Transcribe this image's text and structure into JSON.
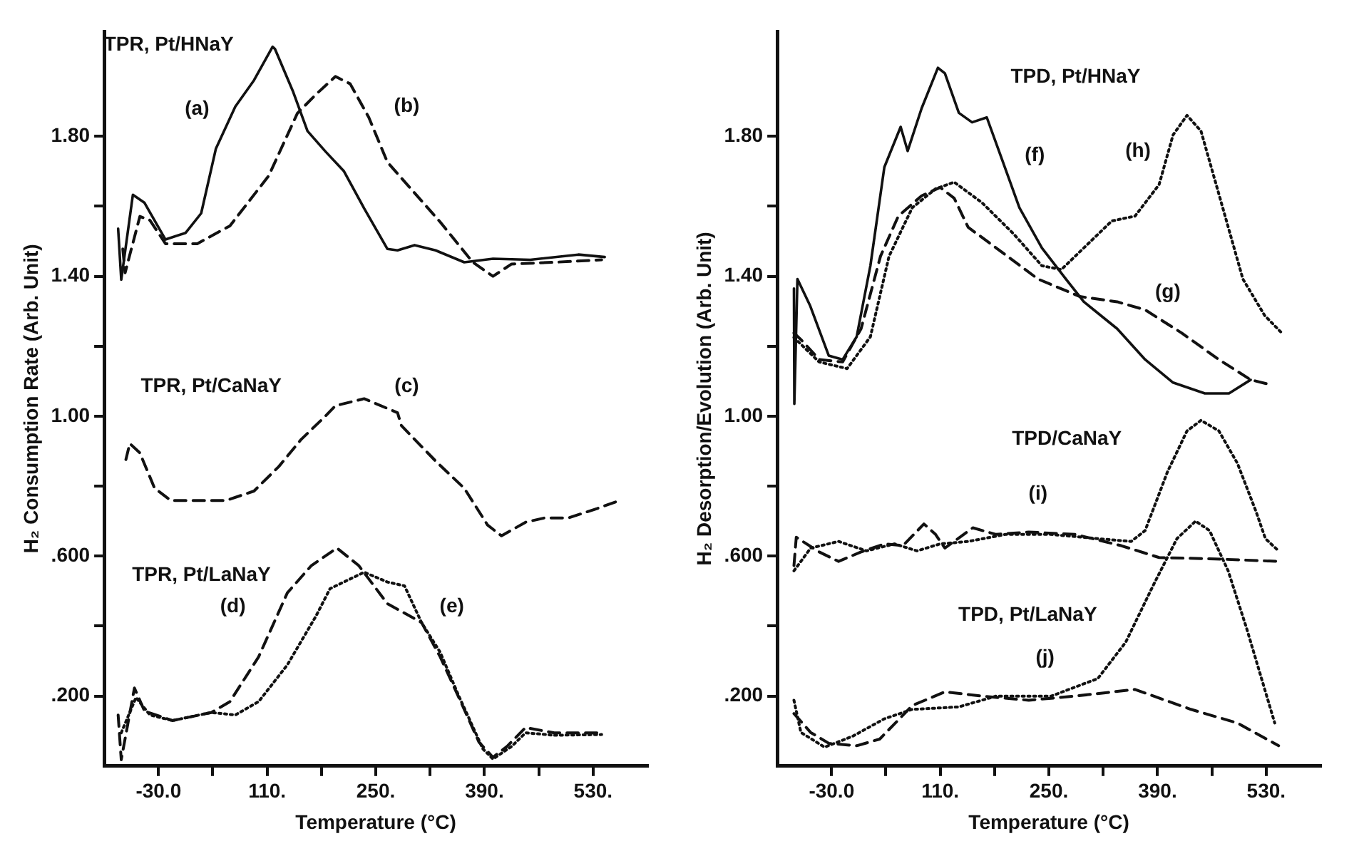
{
  "chart_data": [
    {
      "type": "line",
      "xlabel": "Temperature (°C)",
      "ylabel": "H₂ Consumption Rate (Arb. Unit)",
      "xlim": [
        -100,
        600
      ],
      "ylim": [
        0,
        2.1
      ],
      "xticks": [
        {
          "value": -30,
          "label": "-30.0"
        },
        {
          "value": 40,
          "label": null
        },
        {
          "value": 110,
          "label": "110."
        },
        {
          "value": 180,
          "label": null
        },
        {
          "value": 250,
          "label": "250."
        },
        {
          "value": 320,
          "label": null
        },
        {
          "value": 390,
          "label": "390."
        },
        {
          "value": 460,
          "label": null
        },
        {
          "value": 530,
          "label": "530."
        }
      ],
      "yticks": [
        {
          "value": 0.2,
          "label": ".200"
        },
        {
          "value": 0.4,
          "label": null
        },
        {
          "value": 0.6,
          "label": ".600"
        },
        {
          "value": 0.8,
          "label": null
        },
        {
          "value": 1.0,
          "label": "1.00"
        },
        {
          "value": 1.2,
          "label": null
        },
        {
          "value": 1.4,
          "label": "1.40"
        },
        {
          "value": 1.6,
          "label": null
        },
        {
          "value": 1.8,
          "label": "1.80"
        }
      ],
      "grid": false,
      "legend": false,
      "marker": "none",
      "series": [
        {
          "color": "#111111",
          "line_style": "solid",
          "x": [
            -82,
            -78,
            -63,
            -48,
            -21,
            5,
            25,
            44,
            69,
            93,
            117,
            120,
            143,
            162,
            185,
            209,
            235,
            265,
            278,
            300,
            327,
            364,
            401,
            449,
            511,
            545
          ],
          "values": [
            1.536,
            1.39,
            1.633,
            1.61,
            1.505,
            1.524,
            1.58,
            1.765,
            1.885,
            1.96,
            2.056,
            2.05,
            1.93,
            1.815,
            1.757,
            1.7,
            1.594,
            1.478,
            1.474,
            1.489,
            1.474,
            1.44,
            1.45,
            1.447,
            1.462,
            1.455
          ]
        },
        {
          "color": "#111111",
          "line_style": "dashed",
          "x": [
            -76,
            -73,
            -54,
            -41,
            -21,
            20,
            62,
            112,
            149,
            173,
            198,
            217,
            241,
            265,
            296,
            333,
            375,
            401,
            425,
            480,
            541
          ],
          "values": [
            1.478,
            1.41,
            1.571,
            1.56,
            1.493,
            1.493,
            1.544,
            1.687,
            1.866,
            1.92,
            1.971,
            1.95,
            1.854,
            1.726,
            1.648,
            1.555,
            1.44,
            1.4,
            1.435,
            1.44,
            1.447
          ]
        },
        {
          "color": "#111111",
          "line_style": "dashed",
          "x": [
            -72,
            -67,
            -54,
            -35,
            -14,
            20,
            57,
            93,
            125,
            154,
            185,
            198,
            235,
            278,
            283,
            327,
            364,
            394,
            412,
            443,
            467,
            498,
            535,
            559
          ],
          "values": [
            0.876,
            0.922,
            0.895,
            0.794,
            0.759,
            0.759,
            0.759,
            0.786,
            0.856,
            0.934,
            1.0,
            1.03,
            1.05,
            1.01,
            0.973,
            0.872,
            0.794,
            0.689,
            0.658,
            0.697,
            0.709,
            0.709,
            0.736,
            0.755
          ]
        },
        {
          "color": "#111111",
          "line_style": "dashed",
          "x": [
            -82,
            -78,
            -61,
            -48,
            -12,
            38,
            62,
            99,
            136,
            167,
            200,
            228,
            265,
            309,
            333,
            357,
            383,
            401,
            419,
            443,
            480,
            541
          ],
          "values": [
            0.146,
            0.018,
            0.223,
            0.157,
            0.13,
            0.153,
            0.184,
            0.312,
            0.495,
            0.573,
            0.623,
            0.573,
            0.464,
            0.41,
            0.312,
            0.196,
            0.068,
            0.025,
            0.056,
            0.11,
            0.095,
            0.095
          ]
        },
        {
          "color": "#111111",
          "line_style": "dotted",
          "x": [
            -78,
            -59,
            -41,
            -12,
            38,
            69,
            99,
            136,
            173,
            191,
            235,
            265,
            287,
            309,
            333,
            357,
            388,
            401,
            425,
            443,
            480,
            541
          ],
          "values": [
            0.095,
            0.196,
            0.146,
            0.13,
            0.153,
            0.146,
            0.184,
            0.289,
            0.429,
            0.507,
            0.554,
            0.526,
            0.515,
            0.41,
            0.325,
            0.2,
            0.049,
            0.02,
            0.056,
            0.095,
            0.088,
            0.09
          ]
        }
      ],
      "annotations": [
        "TPR, Pt/HNaY",
        "(a)",
        "(b)",
        "TPR, Pt/CaNaY",
        "(c)",
        "TPR, Pt/LaNaY",
        "(d)",
        "(e)"
      ]
    },
    {
      "type": "line",
      "xlabel": "Temperature (°C)",
      "ylabel": "H₂ Desorption/Evolution (Arb. Unit)",
      "xlim": [
        -100,
        600
      ],
      "ylim": [
        0,
        2.1
      ],
      "xticks": [
        {
          "value": -30,
          "label": "-30.0"
        },
        {
          "value": 40,
          "label": null
        },
        {
          "value": 110,
          "label": "110."
        },
        {
          "value": 180,
          "label": null
        },
        {
          "value": 250,
          "label": "250."
        },
        {
          "value": 320,
          "label": null
        },
        {
          "value": 390,
          "label": "390."
        },
        {
          "value": 460,
          "label": null
        },
        {
          "value": 530,
          "label": "530."
        }
      ],
      "yticks": [
        {
          "value": 0.2,
          "label": ".200"
        },
        {
          "value": 0.4,
          "label": null
        },
        {
          "value": 0.6,
          "label": ".600"
        },
        {
          "value": 0.8,
          "label": null
        },
        {
          "value": 1.0,
          "label": "1.00"
        },
        {
          "value": 1.2,
          "label": null
        },
        {
          "value": 1.4,
          "label": "1.40"
        },
        {
          "value": 1.6,
          "label": null
        },
        {
          "value": 1.8,
          "label": "1.80"
        }
      ],
      "grid": false,
      "legend": false,
      "marker": "none",
      "series": [
        {
          "color": "#111111",
          "line_style": "solid",
          "x": [
            -78.5,
            -78,
            -74,
            -57.5,
            -33.6,
            -15.7,
            2.3,
            20,
            38,
            59,
            68,
            86,
            107,
            116,
            134,
            151,
            170,
            187,
            212,
            241,
            272,
            295,
            338,
            374,
            410,
            451,
            482,
            510
          ],
          "values": [
            1.365,
            1.035,
            1.392,
            1.315,
            1.173,
            1.162,
            1.227,
            1.43,
            1.712,
            1.827,
            1.758,
            1.88,
            1.996,
            1.98,
            1.867,
            1.84,
            1.854,
            1.75,
            1.596,
            1.481,
            1.392,
            1.327,
            1.25,
            1.162,
            1.096,
            1.065,
            1.065,
            1.104
          ]
        },
        {
          "color": "#111111",
          "line_style": "dashed",
          "x": [
            -78.5,
            -69.5,
            -46,
            -15.7,
            8,
            33,
            56,
            86,
            110,
            128,
            146,
            182,
            236,
            290,
            338,
            374,
            421,
            469,
            510,
            532
          ],
          "values": [
            1.238,
            1.219,
            1.162,
            1.155,
            1.25,
            1.457,
            1.572,
            1.63,
            1.654,
            1.623,
            1.54,
            1.481,
            1.392,
            1.342,
            1.327,
            1.304,
            1.238,
            1.162,
            1.104,
            1.092
          ]
        },
        {
          "color": "#111111",
          "line_style": "dotted",
          "x": [
            -78.5,
            -46,
            -10,
            20,
            44,
            74,
            104,
            128,
            164,
            205,
            241,
            266,
            295,
            331,
            361,
            392,
            410,
            428,
            446,
            474,
            500,
            528,
            550
          ],
          "values": [
            1.225,
            1.155,
            1.136,
            1.227,
            1.457,
            1.596,
            1.65,
            1.669,
            1.61,
            1.52,
            1.43,
            1.419,
            1.481,
            1.558,
            1.572,
            1.662,
            1.804,
            1.86,
            1.815,
            1.596,
            1.392,
            1.288,
            1.238
          ]
        },
        {
          "color": "#111111",
          "line_style": "dashed",
          "x": [
            -78.5,
            -75.5,
            -46,
            -21,
            8,
            38,
            62,
            89,
            104,
            116,
            152,
            182,
            224,
            284,
            343,
            392,
            464,
            546
          ],
          "values": [
            0.573,
            0.654,
            0.612,
            0.585,
            0.612,
            0.635,
            0.63,
            0.692,
            0.662,
            0.623,
            0.681,
            0.662,
            0.669,
            0.662,
            0.63,
            0.596,
            0.592,
            0.585
          ]
        },
        {
          "color": "#111111",
          "line_style": "dotted",
          "x": [
            -78.5,
            -57,
            -21,
            15,
            51,
            80,
            110,
            146,
            194,
            253,
            313,
            356,
            374,
            403,
            428,
            446,
            469,
            493,
            517,
            529,
            546
          ],
          "values": [
            0.558,
            0.623,
            0.642,
            0.615,
            0.635,
            0.615,
            0.635,
            0.642,
            0.662,
            0.662,
            0.65,
            0.642,
            0.673,
            0.842,
            0.958,
            0.988,
            0.958,
            0.865,
            0.727,
            0.65,
            0.615
          ]
        },
        {
          "color": "#111111",
          "line_style": "dashed",
          "x": [
            -78.5,
            -57,
            -33.6,
            2.3,
            32,
            74,
            116,
            164,
            224,
            284,
            361,
            433,
            493,
            546
          ],
          "values": [
            0.15,
            0.096,
            0.065,
            0.058,
            0.077,
            0.173,
            0.212,
            0.2,
            0.188,
            0.2,
            0.219,
            0.162,
            0.123,
            0.058
          ]
        },
        {
          "color": "#111111",
          "line_style": "dotted",
          "x": [
            -78.5,
            -69.5,
            -39,
            -3,
            38,
            74,
            134,
            182,
            253,
            313,
            349,
            385,
            415,
            439,
            457,
            481,
            505,
            541
          ],
          "values": [
            0.188,
            0.096,
            0.054,
            0.085,
            0.135,
            0.162,
            0.169,
            0.2,
            0.2,
            0.25,
            0.354,
            0.519,
            0.65,
            0.7,
            0.673,
            0.558,
            0.392,
            0.123
          ]
        }
      ],
      "annotations": [
        "TPD, Pt/HNaY",
        "(f)",
        "(h)",
        "(g)",
        "TPD/CaNaY",
        "(i)",
        "TPD, Pt/LaNaY",
        "(j)"
      ]
    }
  ]
}
